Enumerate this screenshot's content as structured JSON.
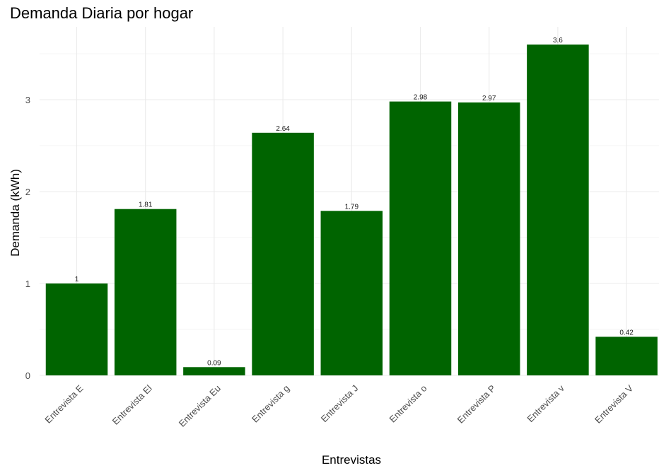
{
  "chart_data": {
    "type": "bar",
    "title": "Demanda Diaria por hogar",
    "xlabel": "Entrevistas",
    "ylabel": "Demanda (kWh)",
    "categories": [
      "Entrevista E",
      "Entrevista El",
      "Entrevista Eu",
      "Entrevista g",
      "Entrevista J",
      "Entrevista o",
      "Entrevista P",
      "Entrevista v",
      "Entrevista V"
    ],
    "values": [
      1,
      1.81,
      0.09,
      2.64,
      1.79,
      2.98,
      2.97,
      3.6,
      0.42
    ],
    "value_labels": [
      "1",
      "1.81",
      "0.09",
      "2.64",
      "1.79",
      "2.98",
      "2.97",
      "3.6",
      "0.42"
    ],
    "y_ticks": [
      0,
      1,
      2,
      3
    ],
    "ylim": [
      0,
      3.78
    ],
    "grid": true,
    "bar_color": "#006400",
    "grid_color": "#ebebeb"
  }
}
